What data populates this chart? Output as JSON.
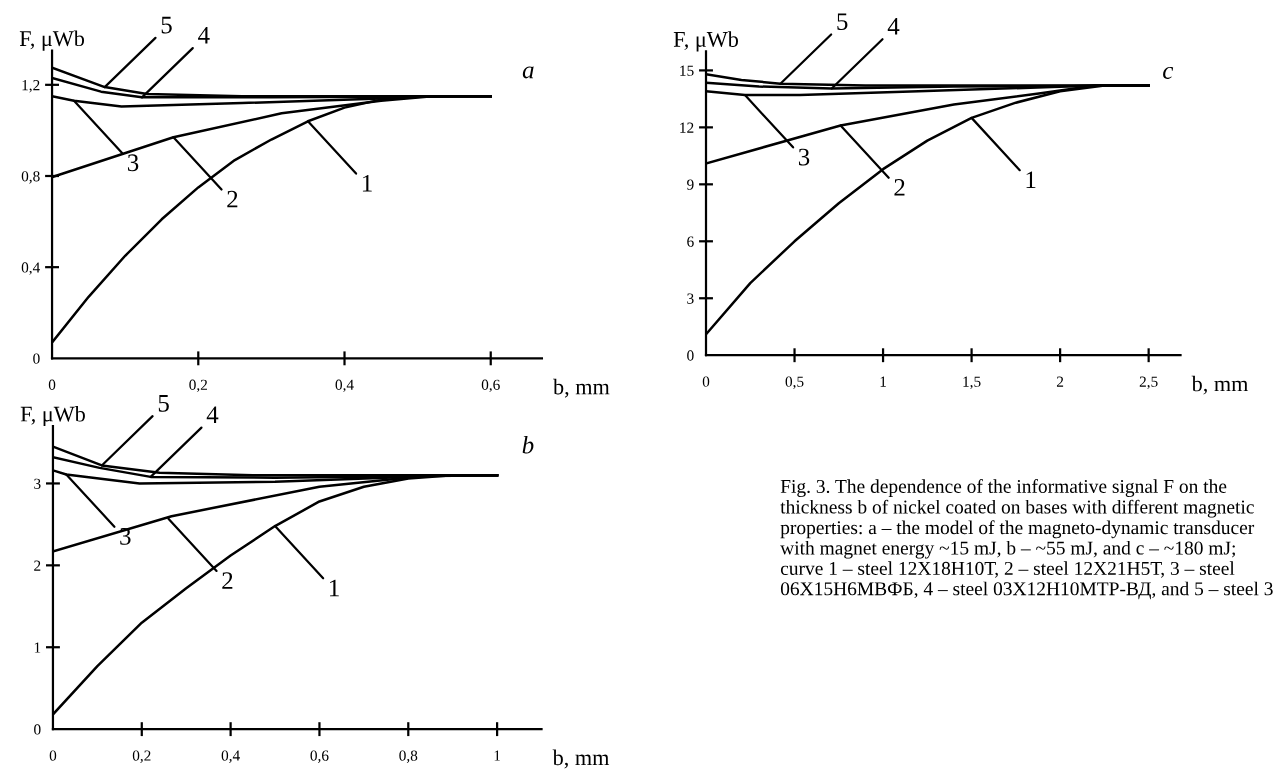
{
  "chart_data": [
    {
      "type": "line",
      "title": "a",
      "ylabel": "F, μWb",
      "xlabel": "b, mm",
      "xlim": [
        0,
        0.67
      ],
      "ylim": [
        0,
        1.35
      ],
      "xticks": [
        0,
        {
          "value": 0.2,
          "label": "0,2"
        },
        {
          "value": 0.4,
          "label": "0,4"
        },
        {
          "value": 0.6,
          "label": "0,6"
        }
      ],
      "yticks": [
        0,
        {
          "value": 0.4,
          "label": "0,4"
        },
        {
          "value": 0.8,
          "label": "0,8"
        },
        {
          "value": 1.2,
          "label": "1,2"
        }
      ],
      "series": [
        {
          "color": "#000000",
          "x": [
            0,
            0.05,
            0.1,
            0.15,
            0.2,
            0.25,
            0.3,
            0.35,
            0.4,
            0.45,
            0.5,
            0.55,
            0.6
          ],
          "values": [
            0.07,
            0.27,
            0.45,
            0.61,
            0.75,
            0.87,
            0.96,
            1.04,
            1.1,
            1.135,
            1.148,
            1.15,
            1.15
          ]
        },
        {
          "color": "#000000",
          "x": [
            0,
            0.166,
            0.314,
            0.45,
            0.52,
            0.6
          ],
          "values": [
            0.795,
            0.97,
            1.075,
            1.13,
            1.15,
            1.15
          ]
        },
        {
          "color": "#000000",
          "x": [
            0,
            0.03,
            0.095,
            0.26,
            0.45,
            0.52,
            0.6
          ],
          "values": [
            1.15,
            1.13,
            1.105,
            1.12,
            1.14,
            1.15,
            1.15
          ]
        },
        {
          "color": "#000000",
          "x": [
            0,
            0.067,
            0.123,
            0.3,
            0.6
          ],
          "values": [
            1.23,
            1.17,
            1.145,
            1.145,
            1.15
          ]
        },
        {
          "color": "#000000",
          "x": [
            0,
            0.072,
            0.13,
            0.26,
            0.6
          ],
          "values": [
            1.275,
            1.19,
            1.16,
            1.15,
            1.15
          ]
        }
      ],
      "annotations": [
        {
          "text": "5",
          "x": 0.072,
          "y": 1.19
        },
        {
          "text": "4",
          "x": 0.123,
          "y": 1.145
        },
        {
          "text": "3",
          "x": 0.03,
          "y": 1.13
        },
        {
          "text": "2",
          "x": 0.166,
          "y": 0.97
        },
        {
          "text": "1",
          "x": 0.35,
          "y": 1.04
        }
      ]
    },
    {
      "type": "line",
      "title": "c",
      "ylabel": "F, μWb",
      "xlabel": "b, mm",
      "xlim": [
        0,
        2.68
      ],
      "ylim": [
        0,
        16
      ],
      "xticks": [
        0,
        {
          "value": 0.5,
          "label": "0,5"
        },
        1,
        {
          "value": 1.5,
          "label": "1,5"
        },
        2,
        {
          "value": 2.5,
          "label": "2,5"
        }
      ],
      "yticks": [
        0,
        3,
        6,
        9,
        12,
        15
      ],
      "series": [
        {
          "color": "#000000",
          "x": [
            0,
            0.25,
            0.5,
            0.75,
            1,
            1.25,
            1.5,
            1.75,
            2,
            2.25,
            2.5
          ],
          "values": [
            1.1,
            3.8,
            6.0,
            8.0,
            9.8,
            11.3,
            12.5,
            13.3,
            13.9,
            14.2,
            14.2
          ]
        },
        {
          "color": "#000000",
          "x": [
            0,
            0.76,
            1.4,
            1.89,
            2.2,
            2.5
          ],
          "values": [
            10.1,
            12.1,
            13.2,
            13.8,
            14.2,
            14.2
          ]
        },
        {
          "color": "#000000",
          "x": [
            0,
            0.22,
            0.53,
            1.2,
            2.2,
            2.5
          ],
          "values": [
            13.9,
            13.7,
            13.7,
            13.9,
            14.2,
            14.2
          ]
        },
        {
          "color": "#000000",
          "x": [
            0,
            0.3,
            0.71,
            1.4,
            2.5
          ],
          "values": [
            14.35,
            14.15,
            14.05,
            14.15,
            14.2
          ]
        },
        {
          "color": "#000000",
          "x": [
            0,
            0.2,
            0.42,
            0.9,
            2.5
          ],
          "values": [
            14.8,
            14.5,
            14.3,
            14.2,
            14.2
          ]
        }
      ],
      "annotations": [
        {
          "text": "5",
          "x": 0.42,
          "y": 14.3
        },
        {
          "text": "4",
          "x": 0.71,
          "y": 14.05
        },
        {
          "text": "3",
          "x": 0.22,
          "y": 13.7
        },
        {
          "text": "2",
          "x": 0.76,
          "y": 12.1
        },
        {
          "text": "1",
          "x": 1.5,
          "y": 12.5
        }
      ]
    },
    {
      "type": "line",
      "title": "b",
      "ylabel": "F, μWb",
      "xlabel": "b, mm",
      "xlim": [
        0,
        1.1
      ],
      "ylim": [
        0,
        3.7
      ],
      "xticks": [
        0,
        {
          "value": 0.2,
          "label": "0,2"
        },
        {
          "value": 0.4,
          "label": "0,4"
        },
        {
          "value": 0.6,
          "label": "0,6"
        },
        {
          "value": 0.8,
          "label": "0,8"
        },
        1
      ],
      "yticks": [
        0,
        1,
        2,
        3
      ],
      "series": [
        {
          "color": "#000000",
          "x": [
            0,
            0.1,
            0.2,
            0.3,
            0.4,
            0.5,
            0.6,
            0.7,
            0.8,
            0.9,
            1.0
          ],
          "values": [
            0.18,
            0.77,
            1.3,
            1.72,
            2.12,
            2.48,
            2.78,
            2.96,
            3.06,
            3.1,
            3.1
          ]
        },
        {
          "color": "#000000",
          "x": [
            0,
            0.267,
            0.6,
            0.78,
            0.87,
            1.0
          ],
          "values": [
            2.17,
            2.6,
            2.96,
            3.06,
            3.1,
            3.1
          ]
        },
        {
          "color": "#000000",
          "x": [
            0,
            0.03,
            0.195,
            0.5,
            0.75,
            0.87,
            1.0
          ],
          "values": [
            3.16,
            3.11,
            3.0,
            3.02,
            3.07,
            3.1,
            3.1
          ]
        },
        {
          "color": "#000000",
          "x": [
            0,
            0.105,
            0.22,
            0.5,
            1.0
          ],
          "values": [
            3.32,
            3.19,
            3.08,
            3.07,
            3.1
          ]
        },
        {
          "color": "#000000",
          "x": [
            0,
            0.11,
            0.24,
            0.45,
            1.0
          ],
          "values": [
            3.45,
            3.22,
            3.13,
            3.1,
            3.1
          ]
        }
      ],
      "annotations": [
        {
          "text": "5",
          "x": 0.11,
          "y": 3.22
        },
        {
          "text": "4",
          "x": 0.22,
          "y": 3.08
        },
        {
          "text": "3",
          "x": 0.03,
          "y": 3.11
        },
        {
          "text": "2",
          "x": 0.26,
          "y": 2.57
        },
        {
          "text": "1",
          "x": 0.5,
          "y": 2.48
        },
        "Fig. 3. The dependence of the informative signal F on the thickness b of nickel coated on bases with different magnetic properties: a – the model of the magneto-dynamic transducer with magnet energy ~15 mJ, b – ~55 mJ, and c – ~180 mJ; curve 1 – steel 12Х18Н10Т, 2 – steel 12Х21Н5Т, 3 – steel 06Х15Н6МВФБ, 4 – steel 03Х12Н10МТР-ВД, and 5 – steel 3"
      ]
    }
  ]
}
